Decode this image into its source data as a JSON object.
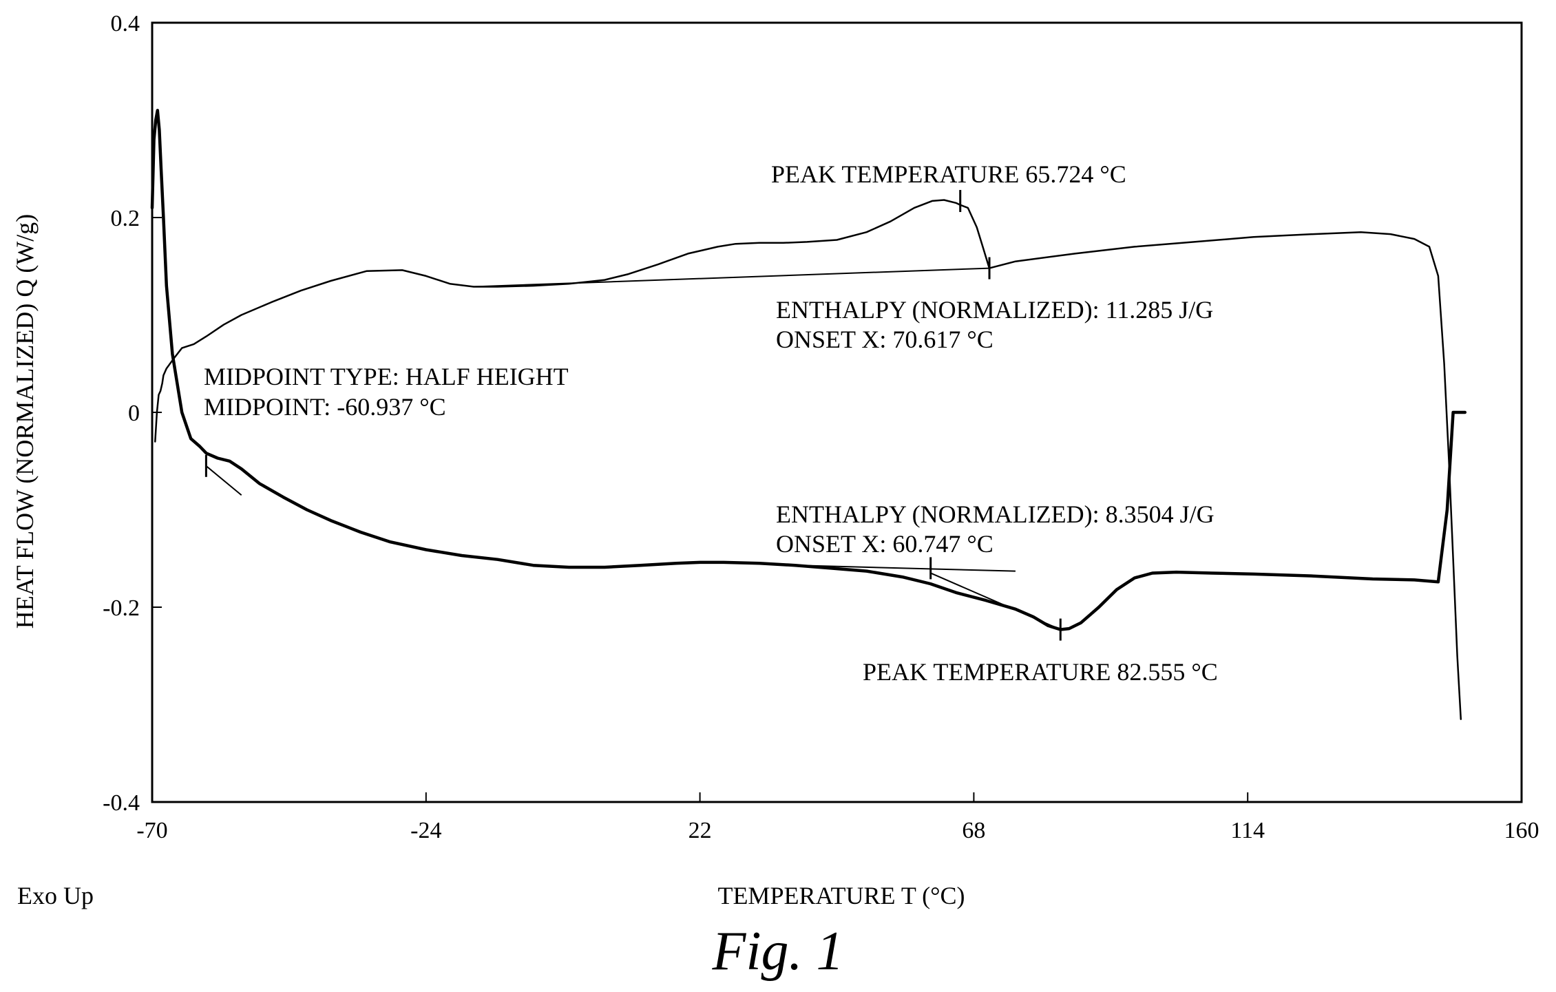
{
  "chart_data": {
    "type": "line",
    "xlabel": "TEMPERATURE T (°C)",
    "ylabel": "HEAT FLOW (NORMALIZED) Q (W/g)",
    "xlim": [
      -70,
      160
    ],
    "ylim": [
      -0.4,
      0.4
    ],
    "x_ticks": [
      -70,
      -24,
      22,
      68,
      114,
      160
    ],
    "x_tick_labels": [
      "-70",
      "-24",
      "22",
      "68",
      "114",
      "160"
    ],
    "y_ticks": [
      -0.4,
      -0.2,
      0,
      0.2,
      0.4
    ],
    "y_tick_labels": [
      "-0.4",
      "-0.2",
      "0",
      "0.2",
      "0.4"
    ],
    "grid": false,
    "corner_label": "Exo Up",
    "caption": "Fig. 1",
    "series": [
      {
        "x": [
          -69.5,
          -69.2,
          -68.9,
          -68.6,
          -68.3,
          -68.1,
          -67.6,
          -66.4,
          -65.0,
          -63.0,
          -60.9,
          -58.0,
          -55.0,
          -50.0,
          -45.0,
          -40.0,
          -34.0,
          -28.0,
          -24.0,
          -20.0,
          -16.0,
          -12.0,
          -6.0,
          0.0,
          6.0,
          10.0,
          15.0,
          20.0,
          25.0,
          28.0,
          32.0,
          36.0,
          40.0,
          45.0,
          50.0,
          54.0,
          58.0,
          61.0,
          63.0,
          65.0,
          65.7,
          67.0,
          68.5,
          69.5,
          70.6,
          75.0,
          85.0,
          95.0,
          105.0,
          115.0,
          125.0,
          133.0,
          138.0,
          142.0,
          144.5,
          146.0,
          147.0,
          147.8,
          148.5,
          149.2,
          149.8
        ],
        "y": [
          -0.03,
          0.0,
          0.018,
          0.022,
          0.03,
          0.038,
          0.045,
          0.055,
          0.066,
          0.07,
          0.078,
          0.09,
          0.1,
          0.113,
          0.125,
          0.135,
          0.145,
          0.146,
          0.14,
          0.132,
          0.129,
          0.129,
          0.13,
          0.132,
          0.136,
          0.142,
          0.152,
          0.163,
          0.17,
          0.173,
          0.174,
          0.174,
          0.175,
          0.177,
          0.185,
          0.196,
          0.21,
          0.217,
          0.218,
          0.215,
          0.213,
          0.21,
          0.19,
          0.17,
          0.148,
          0.155,
          0.163,
          0.17,
          0.175,
          0.18,
          0.183,
          0.185,
          0.183,
          0.178,
          0.17,
          0.14,
          0.05,
          -0.05,
          -0.15,
          -0.25,
          -0.315
        ]
      },
      {
        "x": [
          -70.0,
          -69.7,
          -69.4,
          -69.1,
          -68.8,
          -68.5,
          -68.1,
          -67.6,
          -66.6,
          -65.0,
          -63.5,
          -62.0,
          -60.9,
          -59.0,
          -57.0,
          -55.0,
          -52.0,
          -48.0,
          -44.0,
          -40.0,
          -35.0,
          -30.0,
          -24.0,
          -18.0,
          -12.0,
          -6.0,
          0.0,
          6.0,
          12.0,
          18.0,
          22.0,
          26.0,
          32.0,
          38.0,
          44.0,
          50.0,
          56.0,
          60.7,
          65.0,
          70.0,
          75.0,
          78.0,
          80.5,
          82.555,
          84.0,
          86.0,
          89.0,
          92.0,
          95.0,
          98.0,
          102.0,
          108.0,
          115.0,
          125.0,
          135.0,
          142.0,
          146.0,
          147.5,
          148.5,
          149.5,
          150.5
        ],
        "y": [
          0.21,
          0.28,
          0.3,
          0.31,
          0.29,
          0.25,
          0.2,
          0.13,
          0.06,
          0.0,
          -0.027,
          -0.035,
          -0.042,
          -0.047,
          -0.05,
          -0.058,
          -0.073,
          -0.087,
          -0.1,
          -0.111,
          -0.123,
          -0.133,
          -0.141,
          -0.147,
          -0.151,
          -0.157,
          -0.159,
          -0.159,
          -0.157,
          -0.155,
          -0.154,
          -0.154,
          -0.155,
          -0.157,
          -0.16,
          -0.163,
          -0.169,
          -0.176,
          -0.185,
          -0.193,
          -0.202,
          -0.21,
          -0.219,
          -0.223,
          -0.222,
          -0.216,
          -0.2,
          -0.182,
          -0.17,
          -0.165,
          -0.164,
          -0.165,
          -0.166,
          -0.168,
          -0.171,
          -0.172,
          -0.174,
          -0.1,
          0.0,
          0.0,
          0.0
        ]
      }
    ],
    "annotations": [
      {
        "text": "PEAK TEMPERATURE 65.724 °C"
      },
      {
        "text": "ENTHALPY (NORMALIZED): 11.285 J/G"
      },
      {
        "text": "ONSET X: 70.617 °C"
      },
      {
        "text": "MIDPOINT TYPE: HALF HEIGHT"
      },
      {
        "text": "MIDPOINT: -60.937 °C"
      },
      {
        "text": "ENTHALPY (NORMALIZED): 8.3504 J/G"
      },
      {
        "text": "ONSET X: 60.747 °C"
      },
      {
        "text": "PEAK TEMPERATURE 82.555 °C"
      }
    ],
    "markers": [
      {
        "x": 65.724,
        "y": 0.217
      },
      {
        "x": 70.617,
        "y": 0.148
      },
      {
        "x": -60.937,
        "y": -0.055
      },
      {
        "x": 60.747,
        "y": -0.16
      },
      {
        "x": 82.555,
        "y": -0.223
      }
    ],
    "baselines": [
      {
        "x": [
          -16.0,
          70.617
        ],
        "y": [
          0.129,
          0.148
        ]
      },
      {
        "x": [
          -60.937,
          -55.0
        ],
        "y": [
          -0.055,
          -0.085
        ]
      },
      {
        "x": [
          38.0,
          75.0
        ],
        "y": [
          -0.157,
          -0.163
        ]
      },
      {
        "x": [
          60.747,
          82.555
        ],
        "y": [
          -0.165,
          -0.223
        ]
      }
    ]
  }
}
